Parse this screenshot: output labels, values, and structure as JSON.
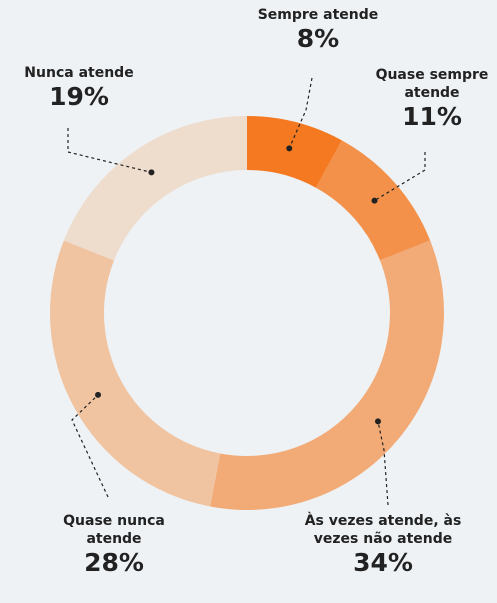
{
  "chart_data": {
    "type": "donut",
    "categories": [
      "Sempre atende",
      "Quase sempre atende",
      "Às vezes atende, às vezes não atende",
      "Quase nunca atende",
      "Nunca atende"
    ],
    "values": [
      8,
      11,
      34,
      28,
      19
    ],
    "value_labels": [
      "8%",
      "11%",
      "34%",
      "28%",
      "19%"
    ],
    "colors": [
      "#f47920",
      "#f3914a",
      "#f2ab76",
      "#f1c4a1",
      "#eedccd"
    ]
  }
}
